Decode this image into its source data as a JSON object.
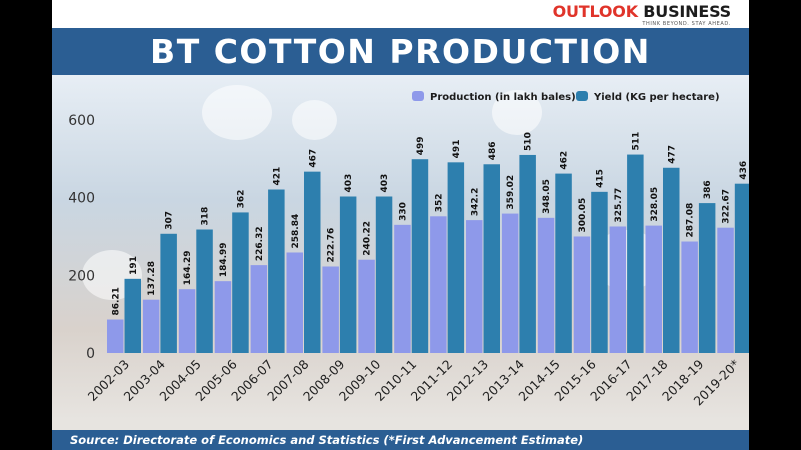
{
  "brand": {
    "part1": "OUTLOOK",
    "part2": "BUSINESS",
    "tagline": "THINK BEYOND. STAY AHEAD."
  },
  "title": "BT COTTON PRODUCTION",
  "source": "Source: Directorate of Economics and Statistics (*First Advancement Estimate)",
  "colors": {
    "band": "#2b5e93",
    "production": "#8e99ea",
    "yield": "#2d7fae"
  },
  "chart_data": {
    "type": "bar",
    "categories": [
      "2002-03",
      "2003-04",
      "2004-05",
      "2005-06",
      "2006-07",
      "2007-08",
      "2008-09",
      "2009-10",
      "2010-11",
      "2011-12",
      "2012-13",
      "2013-14",
      "2014-15",
      "2015-16",
      "2016-17",
      "2017-18",
      "2018-19",
      "2019-20*"
    ],
    "series": [
      {
        "name": "Production (in lakh bales)",
        "color": "#8e99ea",
        "values": [
          86.21,
          137.28,
          164.29,
          184.99,
          226.32,
          258.84,
          222.76,
          240.22,
          330,
          352,
          342.2,
          359.02,
          348.05,
          300.05,
          325.77,
          328.05,
          287.08,
          322.67
        ],
        "labels": [
          "86.21",
          "137.28",
          "164.29",
          "184.99",
          "226.32",
          "258.84",
          "222.76",
          "240.22",
          "330",
          "352",
          "342.2",
          "359.02",
          "348.05",
          "300.05",
          "325.77",
          "328.05",
          "287.08",
          "322.67"
        ]
      },
      {
        "name": "Yield (KG per hectare)",
        "color": "#2d7fae",
        "values": [
          191,
          307,
          318,
          362,
          421,
          467,
          403,
          403,
          499,
          491,
          486,
          510,
          462,
          415,
          511,
          477,
          386,
          436
        ],
        "labels": [
          "191",
          "307",
          "318",
          "362",
          "421",
          "467",
          "403",
          "403",
          "499",
          "491",
          "486",
          "510",
          "462",
          "415",
          "511",
          "477",
          "386",
          "436"
        ]
      }
    ],
    "yticks": [
      "0",
      "200",
      "400",
      "600"
    ],
    "ylim": [
      0,
      620
    ],
    "legend": "top-right",
    "grid": false
  }
}
